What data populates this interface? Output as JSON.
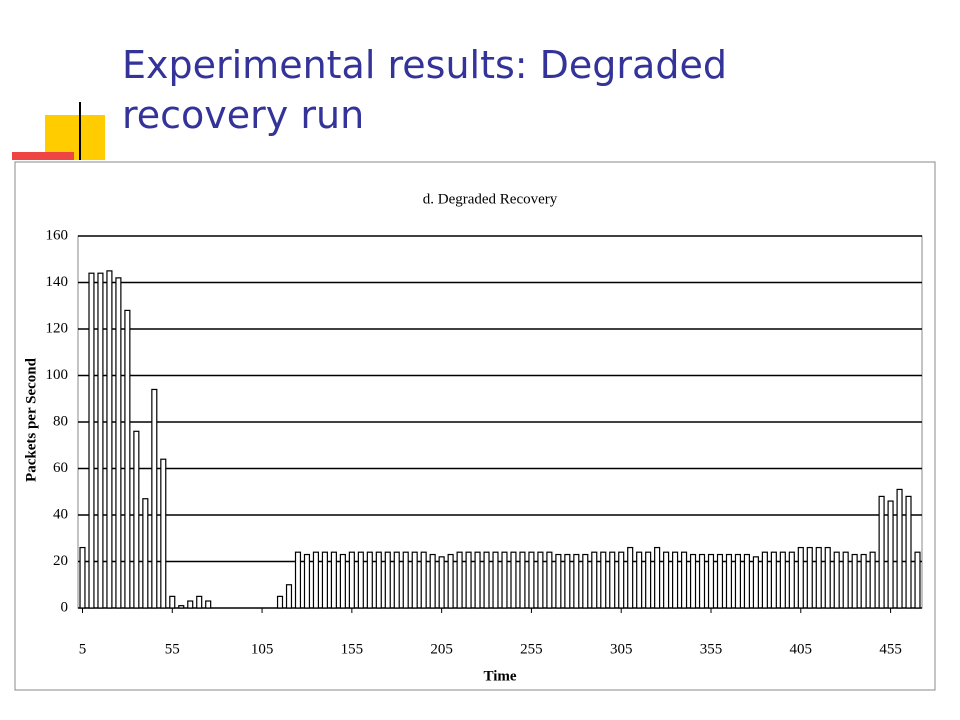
{
  "slide": {
    "title": "Experimental results: Degraded recovery run"
  },
  "chart_data": {
    "type": "bar",
    "title": "d. Degraded Recovery",
    "x_label": "Time",
    "y_label": "Packets per Second",
    "x": [
      5,
      10,
      15,
      20,
      25,
      30,
      35,
      40,
      45,
      50,
      55,
      60,
      65,
      70,
      75,
      80,
      85,
      90,
      95,
      100,
      105,
      110,
      115,
      120,
      125,
      130,
      135,
      140,
      145,
      150,
      155,
      160,
      165,
      170,
      175,
      180,
      185,
      190,
      195,
      200,
      205,
      210,
      215,
      220,
      225,
      230,
      235,
      240,
      245,
      250,
      255,
      260,
      265,
      270,
      275,
      280,
      285,
      290,
      295,
      300,
      305,
      310,
      315,
      320,
      325,
      330,
      335,
      340,
      345,
      350,
      355,
      360,
      365,
      370,
      375,
      380,
      385,
      390,
      395,
      400,
      405,
      410,
      415,
      420,
      425,
      430,
      435,
      440,
      445,
      450,
      455,
      460,
      465,
      470
    ],
    "values": [
      26,
      144,
      144,
      145,
      142,
      128,
      76,
      47,
      94,
      64,
      5,
      1,
      3,
      5,
      3,
      0,
      0,
      0,
      0,
      0,
      0,
      0,
      5,
      10,
      24,
      23,
      24,
      24,
      24,
      23,
      24,
      24,
      24,
      24,
      24,
      24,
      24,
      24,
      24,
      23,
      22,
      23,
      24,
      24,
      24,
      24,
      24,
      24,
      24,
      24,
      24,
      24,
      24,
      23,
      23,
      23,
      23,
      24,
      24,
      24,
      24,
      26,
      24,
      24,
      26,
      24,
      24,
      24,
      23,
      23,
      23,
      23,
      23,
      23,
      23,
      22,
      24,
      24,
      24,
      24,
      26,
      26,
      26,
      26,
      24,
      24,
      23,
      23,
      24,
      48,
      46,
      51,
      48,
      24
    ],
    "color": "#ffffff",
    "xlim": [
      2.5,
      472.5
    ],
    "xticks": [
      5,
      55,
      105,
      155,
      205,
      255,
      305,
      355,
      405,
      455
    ],
    "ylim": [
      0,
      160
    ],
    "yticks": [
      0,
      20,
      40,
      60,
      80,
      100,
      120,
      140,
      160
    ],
    "grid": true
  }
}
